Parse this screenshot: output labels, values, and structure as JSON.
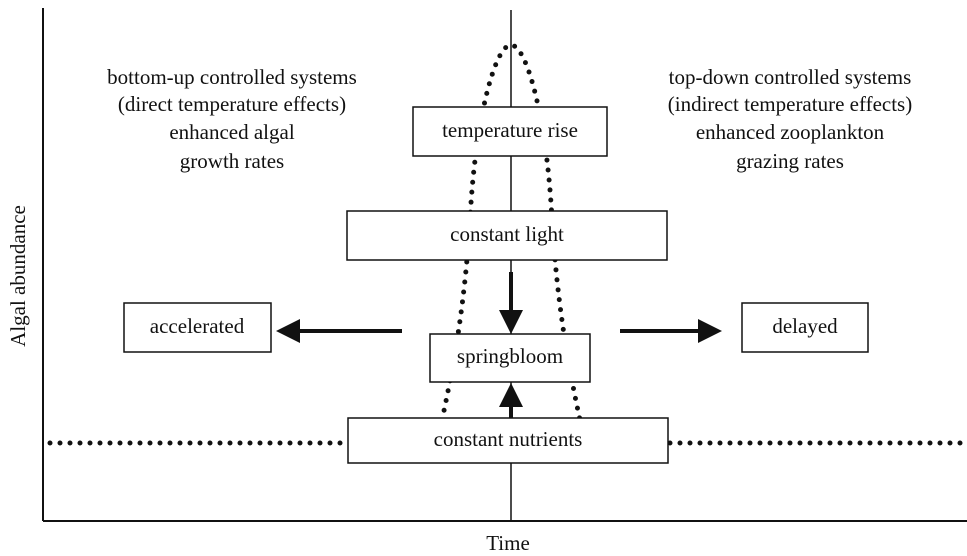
{
  "y_axis_label": "Algal abundance",
  "x_axis_label": "Time",
  "left_text": [
    "bottom-up controlled systems",
    "(direct temperature effects)",
    "enhanced algal",
    "growth rates"
  ],
  "right_text": [
    "top-down controlled systems",
    "(indirect temperature effects)",
    "enhanced zooplankton",
    "grazing rates"
  ],
  "nodes": [
    {
      "label": "temperature rise"
    },
    {
      "label": "constant light"
    },
    {
      "label": "springbloom"
    },
    {
      "label": "constant nutrients"
    },
    {
      "label": "accelerated"
    },
    {
      "label": "delayed"
    }
  ]
}
